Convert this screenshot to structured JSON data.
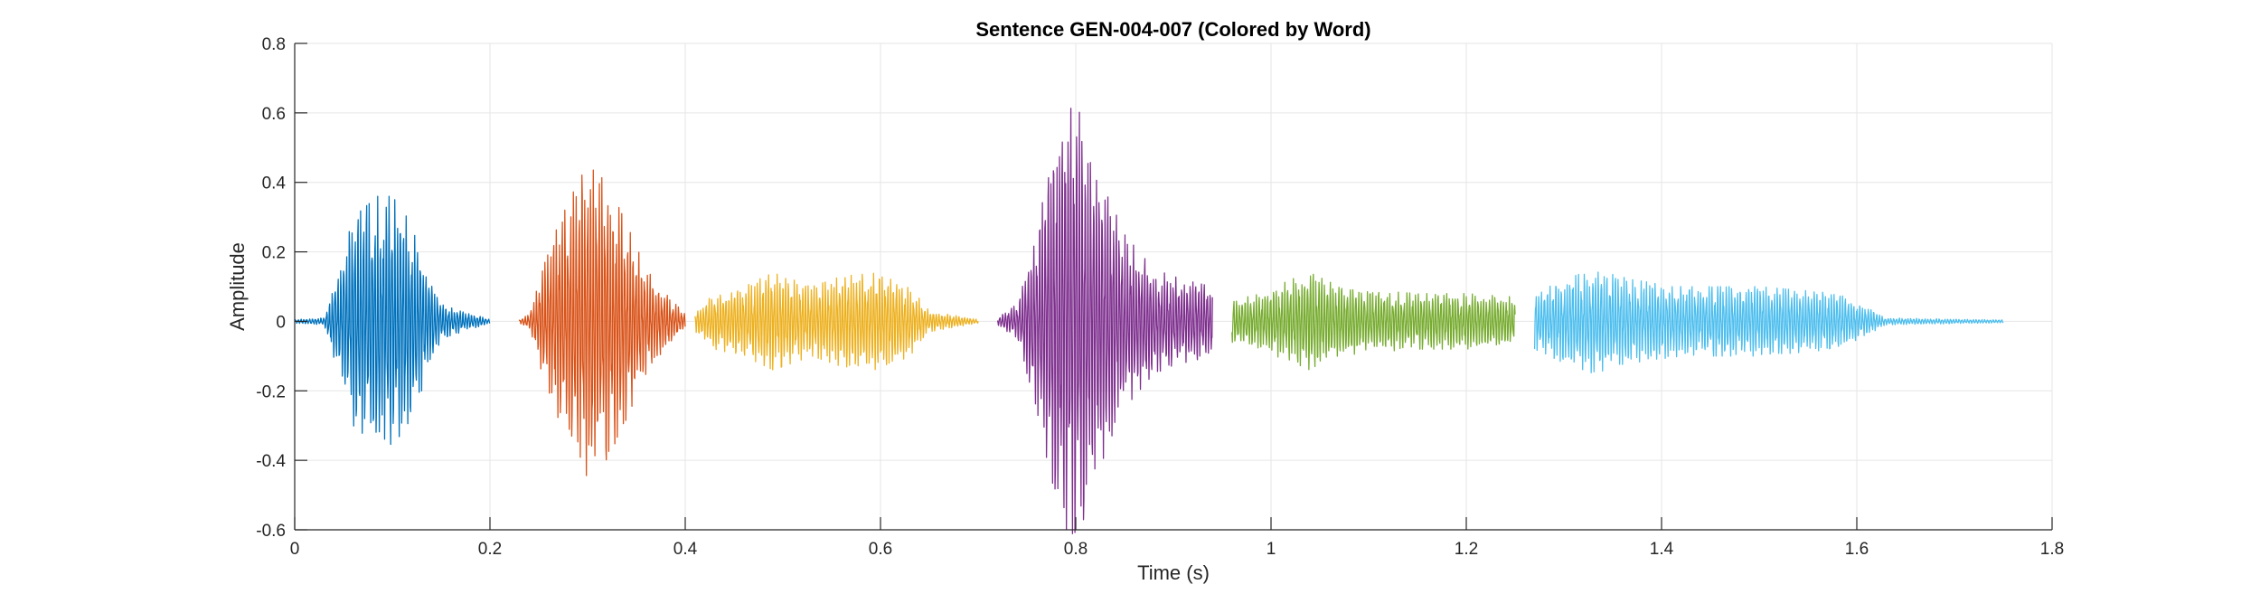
{
  "chart_data": {
    "type": "line",
    "title": "Sentence GEN-004-007 (Colored by Word)",
    "xlabel": "Time (s)",
    "ylabel": "Amplitude",
    "xlim": [
      0,
      1.8
    ],
    "ylim": [
      -0.6,
      0.8
    ],
    "xticks": [
      0,
      0.2,
      0.4,
      0.6,
      0.8,
      1,
      1.2,
      1.4,
      1.6,
      1.8
    ],
    "xtick_labels": [
      "0",
      "0.2",
      "0.4",
      "0.6",
      "0.8",
      "1",
      "1.2",
      "1.4",
      "1.6",
      "1.8"
    ],
    "yticks": [
      -0.6,
      -0.4,
      -0.2,
      0,
      0.2,
      0.4,
      0.6,
      0.8
    ],
    "ytick_labels": [
      "-0.6",
      "-0.4",
      "-0.2",
      "0",
      "0.2",
      "0.4",
      "0.6",
      "0.8"
    ],
    "grid": true,
    "legend": "none",
    "series": [
      {
        "color": "#0072BD",
        "start": 0.0,
        "end": 0.2,
        "envelope": [
          [
            0.0,
            0.005
          ],
          [
            0.03,
            0.01
          ],
          [
            0.045,
            0.15
          ],
          [
            0.06,
            0.3
          ],
          [
            0.085,
            0.36
          ],
          [
            0.1,
            0.36
          ],
          [
            0.115,
            0.3
          ],
          [
            0.13,
            0.2
          ],
          [
            0.15,
            0.05
          ],
          [
            0.2,
            0.005
          ]
        ]
      },
      {
        "color": "#D95319",
        "start": 0.23,
        "end": 0.4,
        "envelope": [
          [
            0.23,
            0.005
          ],
          [
            0.24,
            0.02
          ],
          [
            0.25,
            0.12
          ],
          [
            0.27,
            0.28
          ],
          [
            0.29,
            0.4
          ],
          [
            0.3,
            0.45
          ],
          [
            0.32,
            0.4
          ],
          [
            0.34,
            0.28
          ],
          [
            0.36,
            0.15
          ],
          [
            0.38,
            0.08
          ],
          [
            0.4,
            0.02
          ]
        ]
      },
      {
        "color": "#EDB120",
        "start": 0.41,
        "end": 0.7,
        "envelope": [
          [
            0.41,
            0.03
          ],
          [
            0.43,
            0.08
          ],
          [
            0.46,
            0.1
          ],
          [
            0.49,
            0.14
          ],
          [
            0.51,
            0.12
          ],
          [
            0.53,
            0.1
          ],
          [
            0.56,
            0.13
          ],
          [
            0.6,
            0.14
          ],
          [
            0.63,
            0.1
          ],
          [
            0.65,
            0.03
          ],
          [
            0.7,
            0.005
          ]
        ]
      },
      {
        "color": "#7E2F8E",
        "start": 0.72,
        "end": 0.94,
        "envelope": [
          [
            0.72,
            0.01
          ],
          [
            0.74,
            0.05
          ],
          [
            0.76,
            0.25
          ],
          [
            0.775,
            0.5
          ],
          [
            0.79,
            0.62
          ],
          [
            0.805,
            0.6
          ],
          [
            0.82,
            0.45
          ],
          [
            0.85,
            0.25
          ],
          [
            0.88,
            0.15
          ],
          [
            0.91,
            0.12
          ],
          [
            0.94,
            0.1
          ]
        ]
      },
      {
        "color": "#77AC30",
        "start": 0.96,
        "end": 1.25,
        "envelope": [
          [
            0.96,
            0.06
          ],
          [
            0.99,
            0.08
          ],
          [
            1.02,
            0.12
          ],
          [
            1.04,
            0.14
          ],
          [
            1.07,
            0.1
          ],
          [
            1.1,
            0.09
          ],
          [
            1.15,
            0.08
          ],
          [
            1.2,
            0.08
          ],
          [
            1.25,
            0.07
          ]
        ]
      },
      {
        "color": "#4DBEEE",
        "start": 1.27,
        "end": 1.75,
        "envelope": [
          [
            1.27,
            0.08
          ],
          [
            1.3,
            0.12
          ],
          [
            1.33,
            0.15
          ],
          [
            1.37,
            0.12
          ],
          [
            1.42,
            0.1
          ],
          [
            1.5,
            0.1
          ],
          [
            1.58,
            0.08
          ],
          [
            1.61,
            0.04
          ],
          [
            1.63,
            0.01
          ],
          [
            1.75,
            0.004
          ]
        ]
      }
    ]
  }
}
